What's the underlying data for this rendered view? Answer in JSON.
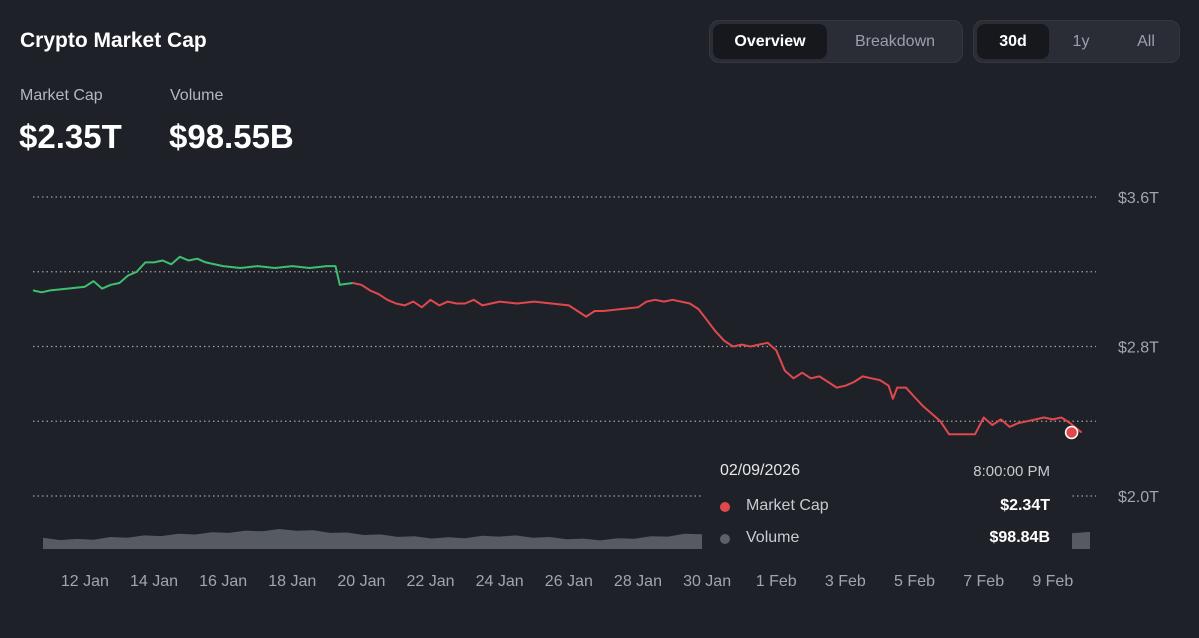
{
  "header": {
    "title": "Crypto Market Cap"
  },
  "view_toggle": {
    "options": [
      "Overview",
      "Breakdown"
    ],
    "active": "Overview"
  },
  "range_toggle": {
    "options": [
      "30d",
      "1y",
      "All"
    ],
    "active": "30d"
  },
  "stats": {
    "market_cap_label": "Market Cap",
    "market_cap_value": "$2.35T",
    "volume_label": "Volume",
    "volume_value": "$98.55B"
  },
  "tooltip": {
    "date": "02/09/2026",
    "time": "8:00:00 PM",
    "rows": [
      {
        "name": "Market Cap",
        "value": "$2.34T",
        "color": "#e0484d"
      },
      {
        "name": "Volume",
        "value": "$98.84B",
        "color": "#5d6069"
      }
    ]
  },
  "colors": {
    "up": "#3fbf6f",
    "down": "#e0484d",
    "volume": "#6a6d76",
    "grid": "#9ea1a8",
    "axis_text": "#a2a5ad"
  },
  "chart_data": {
    "type": "line",
    "y_unit": "USD trillions",
    "ylim": [
      1.8,
      3.6
    ],
    "y_gridlines": [
      2.0,
      2.4,
      2.8,
      3.2,
      3.6
    ],
    "y_tick_labels": [
      {
        "value": 3.6,
        "label": "$3.6T"
      },
      {
        "value": 2.8,
        "label": "$2.8T"
      },
      {
        "value": 2.0,
        "label": "$2.0T"
      }
    ],
    "x_range": [
      "2026-01-10T12:00",
      "2026-02-10T06:00"
    ],
    "x_tick_labels": [
      {
        "date": "2026-01-12",
        "label": "12 Jan"
      },
      {
        "date": "2026-01-14",
        "label": "14 Jan"
      },
      {
        "date": "2026-01-16",
        "label": "16 Jan"
      },
      {
        "date": "2026-01-18",
        "label": "18 Jan"
      },
      {
        "date": "2026-01-20",
        "label": "20 Jan"
      },
      {
        "date": "2026-01-22",
        "label": "22 Jan"
      },
      {
        "date": "2026-01-24",
        "label": "24 Jan"
      },
      {
        "date": "2026-01-26",
        "label": "26 Jan"
      },
      {
        "date": "2026-01-28",
        "label": "28 Jan"
      },
      {
        "date": "2026-01-30",
        "label": "30 Jan"
      },
      {
        "date": "2026-02-01",
        "label": "1 Feb"
      },
      {
        "date": "2026-02-03",
        "label": "3 Feb"
      },
      {
        "date": "2026-02-05",
        "label": "5 Feb"
      },
      {
        "date": "2026-02-07",
        "label": "7 Feb"
      },
      {
        "date": "2026-02-09",
        "label": "9 Feb"
      }
    ],
    "baseline": 3.19,
    "grid": true,
    "legend": "none",
    "series": [
      {
        "name": "Market Cap",
        "points": [
          [
            "2026-01-10T12:00",
            3.1
          ],
          [
            "2026-01-10T18:00",
            3.09
          ],
          [
            "2026-01-11T00:00",
            3.1
          ],
          [
            "2026-01-11T12:00",
            3.11
          ],
          [
            "2026-01-12T00:00",
            3.12
          ],
          [
            "2026-01-12T06:00",
            3.15
          ],
          [
            "2026-01-12T12:00",
            3.11
          ],
          [
            "2026-01-12T18:00",
            3.13
          ],
          [
            "2026-01-13T00:00",
            3.14
          ],
          [
            "2026-01-13T06:00",
            3.18
          ],
          [
            "2026-01-13T12:00",
            3.2
          ],
          [
            "2026-01-13T18:00",
            3.25
          ],
          [
            "2026-01-14T00:00",
            3.25
          ],
          [
            "2026-01-14T06:00",
            3.26
          ],
          [
            "2026-01-14T12:00",
            3.24
          ],
          [
            "2026-01-14T18:00",
            3.28
          ],
          [
            "2026-01-15T00:00",
            3.26
          ],
          [
            "2026-01-15T06:00",
            3.27
          ],
          [
            "2026-01-15T12:00",
            3.25
          ],
          [
            "2026-01-16T00:00",
            3.23
          ],
          [
            "2026-01-16T12:00",
            3.22
          ],
          [
            "2026-01-17T00:00",
            3.23
          ],
          [
            "2026-01-17T12:00",
            3.22
          ],
          [
            "2026-01-18T00:00",
            3.23
          ],
          [
            "2026-01-18T12:00",
            3.22
          ],
          [
            "2026-01-19T00:00",
            3.23
          ],
          [
            "2026-01-19T06:00",
            3.23
          ],
          [
            "2026-01-19T09:00",
            3.13
          ],
          [
            "2026-01-19T18:00",
            3.14
          ],
          [
            "2026-01-20T00:00",
            3.13
          ],
          [
            "2026-01-20T06:00",
            3.1
          ],
          [
            "2026-01-20T12:00",
            3.08
          ],
          [
            "2026-01-20T18:00",
            3.05
          ],
          [
            "2026-01-21T00:00",
            3.03
          ],
          [
            "2026-01-21T06:00",
            3.02
          ],
          [
            "2026-01-21T12:00",
            3.04
          ],
          [
            "2026-01-21T18:00",
            3.01
          ],
          [
            "2026-01-22T00:00",
            3.05
          ],
          [
            "2026-01-22T06:00",
            3.02
          ],
          [
            "2026-01-22T12:00",
            3.04
          ],
          [
            "2026-01-22T18:00",
            3.03
          ],
          [
            "2026-01-23T00:00",
            3.03
          ],
          [
            "2026-01-23T06:00",
            3.05
          ],
          [
            "2026-01-23T12:00",
            3.02
          ],
          [
            "2026-01-24T00:00",
            3.04
          ],
          [
            "2026-01-24T12:00",
            3.03
          ],
          [
            "2026-01-25T00:00",
            3.04
          ],
          [
            "2026-01-25T12:00",
            3.03
          ],
          [
            "2026-01-26T00:00",
            3.02
          ],
          [
            "2026-01-26T06:00",
            2.99
          ],
          [
            "2026-01-26T12:00",
            2.96
          ],
          [
            "2026-01-26T18:00",
            2.99
          ],
          [
            "2026-01-27T00:00",
            2.99
          ],
          [
            "2026-01-27T12:00",
            3.0
          ],
          [
            "2026-01-28T00:00",
            3.01
          ],
          [
            "2026-01-28T06:00",
            3.04
          ],
          [
            "2026-01-28T12:00",
            3.05
          ],
          [
            "2026-01-28T18:00",
            3.04
          ],
          [
            "2026-01-29T00:00",
            3.05
          ],
          [
            "2026-01-29T12:00",
            3.03
          ],
          [
            "2026-01-29T18:00",
            3.0
          ],
          [
            "2026-01-30T00:00",
            2.94
          ],
          [
            "2026-01-30T06:00",
            2.88
          ],
          [
            "2026-01-30T12:00",
            2.83
          ],
          [
            "2026-01-30T18:00",
            2.8
          ],
          [
            "2026-01-31T00:00",
            2.81
          ],
          [
            "2026-01-31T06:00",
            2.8
          ],
          [
            "2026-01-31T12:00",
            2.81
          ],
          [
            "2026-01-31T18:00",
            2.82
          ],
          [
            "2026-02-01T00:00",
            2.78
          ],
          [
            "2026-02-01T06:00",
            2.67
          ],
          [
            "2026-02-01T12:00",
            2.63
          ],
          [
            "2026-02-01T18:00",
            2.66
          ],
          [
            "2026-02-02T00:00",
            2.63
          ],
          [
            "2026-02-02T06:00",
            2.64
          ],
          [
            "2026-02-02T12:00",
            2.61
          ],
          [
            "2026-02-02T18:00",
            2.58
          ],
          [
            "2026-02-03T00:00",
            2.59
          ],
          [
            "2026-02-03T06:00",
            2.61
          ],
          [
            "2026-02-03T12:00",
            2.64
          ],
          [
            "2026-02-03T18:00",
            2.63
          ],
          [
            "2026-02-04T00:00",
            2.62
          ],
          [
            "2026-02-04T06:00",
            2.59
          ],
          [
            "2026-02-04T09:00",
            2.52
          ],
          [
            "2026-02-04T12:00",
            2.58
          ],
          [
            "2026-02-04T18:00",
            2.58
          ],
          [
            "2026-02-05T00:00",
            2.53
          ],
          [
            "2026-02-05T06:00",
            2.48
          ],
          [
            "2026-02-05T12:00",
            2.44
          ],
          [
            "2026-02-05T18:00",
            2.4
          ],
          [
            "2026-02-06T00:00",
            2.33
          ],
          [
            "2026-02-06T18:00",
            2.33
          ],
          [
            "2026-02-07T00:00",
            2.42
          ],
          [
            "2026-02-07T06:00",
            2.38
          ],
          [
            "2026-02-07T12:00",
            2.41
          ],
          [
            "2026-02-07T18:00",
            2.37
          ],
          [
            "2026-02-08T00:00",
            2.39
          ],
          [
            "2026-02-08T06:00",
            2.4
          ],
          [
            "2026-02-08T12:00",
            2.41
          ],
          [
            "2026-02-08T18:00",
            2.42
          ],
          [
            "2026-02-09T00:00",
            2.41
          ],
          [
            "2026-02-09T06:00",
            2.42
          ],
          [
            "2026-02-09T12:00",
            2.39
          ],
          [
            "2026-02-09T20:00",
            2.34
          ]
        ]
      },
      {
        "name": "Volume",
        "relative_values": [
          0.45,
          0.4,
          0.38,
          0.42,
          0.5,
          0.55,
          0.6,
          0.65,
          0.7,
          0.75,
          0.8,
          0.85,
          0.9,
          0.95,
          1.0,
          0.98,
          0.92,
          0.85,
          0.78,
          0.72,
          0.66,
          0.6,
          0.55,
          0.5,
          0.48,
          0.52,
          0.58,
          0.62,
          0.6,
          0.55,
          0.5,
          0.45,
          0.4,
          0.38,
          0.42,
          0.48,
          0.55,
          0.62,
          0.7,
          0.76,
          0.82,
          0.85,
          0.8,
          0.72,
          0.65,
          0.58,
          0.5,
          0.44,
          0.4,
          0.45,
          0.5,
          0.56,
          0.62,
          0.68,
          0.74,
          0.78,
          0.8,
          0.82,
          0.84,
          0.85,
          0.86,
          0.84,
          0.82
        ]
      }
    ]
  }
}
